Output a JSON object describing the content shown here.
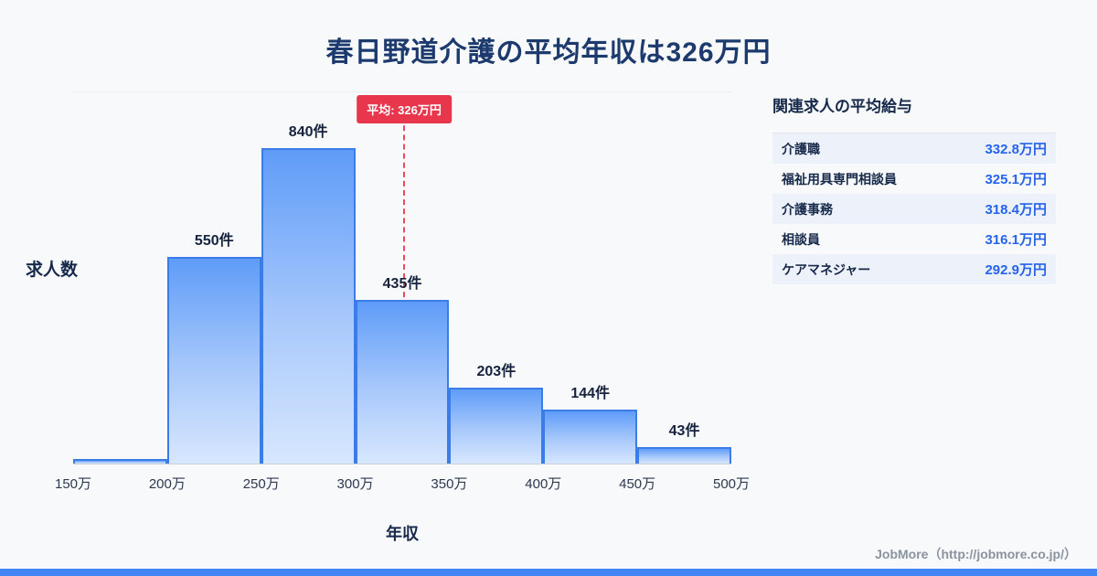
{
  "title": "春日野道介護の平均年収は326万円",
  "chart_data": {
    "type": "bar",
    "title": "春日野道介護の平均年収は326万円",
    "xlabel": "年収",
    "ylabel": "求人数",
    "xlim_man_yen": [
      150,
      500
    ],
    "ylim": [
      0,
      900
    ],
    "grid": false,
    "legend": null,
    "x_tick_labels": [
      "150万",
      "200万",
      "250万",
      "300万",
      "350万",
      "400万",
      "450万",
      "500万"
    ],
    "bins": [
      {
        "range_man_yen": [
          150,
          200
        ],
        "count": 12,
        "count_label": ""
      },
      {
        "range_man_yen": [
          200,
          250
        ],
        "count": 550,
        "count_label": "550件"
      },
      {
        "range_man_yen": [
          250,
          300
        ],
        "count": 840,
        "count_label": "840件"
      },
      {
        "range_man_yen": [
          300,
          350
        ],
        "count": 435,
        "count_label": "435件"
      },
      {
        "range_man_yen": [
          350,
          400
        ],
        "count": 203,
        "count_label": "203件"
      },
      {
        "range_man_yen": [
          400,
          450
        ],
        "count": 144,
        "count_label": "144件"
      },
      {
        "range_man_yen": [
          450,
          500
        ],
        "count": 43,
        "count_label": "43件"
      }
    ],
    "average_line": {
      "value_man_yen": 326,
      "label": "平均: 326万円"
    }
  },
  "side_panel": {
    "title": "関連求人の平均給与",
    "rows": [
      {
        "label": "介護職",
        "value": "332.8万円"
      },
      {
        "label": "福祉用具専門相談員",
        "value": "325.1万円"
      },
      {
        "label": "介護事務",
        "value": "318.4万円"
      },
      {
        "label": "相談員",
        "value": "316.1万円"
      },
      {
        "label": "ケアマネジャー",
        "value": "292.9万円"
      }
    ]
  },
  "footer": {
    "credit": "JobMore（http://jobmore.co.jp/）"
  },
  "theme": {
    "background": "#f7f9fb",
    "title_navy": "#1c3a6e",
    "bar_fill_top": "#5f9cf8",
    "bar_fill_bottom": "#d7e7fe",
    "bar_border": "#3a7ce8",
    "average_red": "#e8364d",
    "value_blue": "#2563eb",
    "footer_blue": "#4286f5"
  }
}
